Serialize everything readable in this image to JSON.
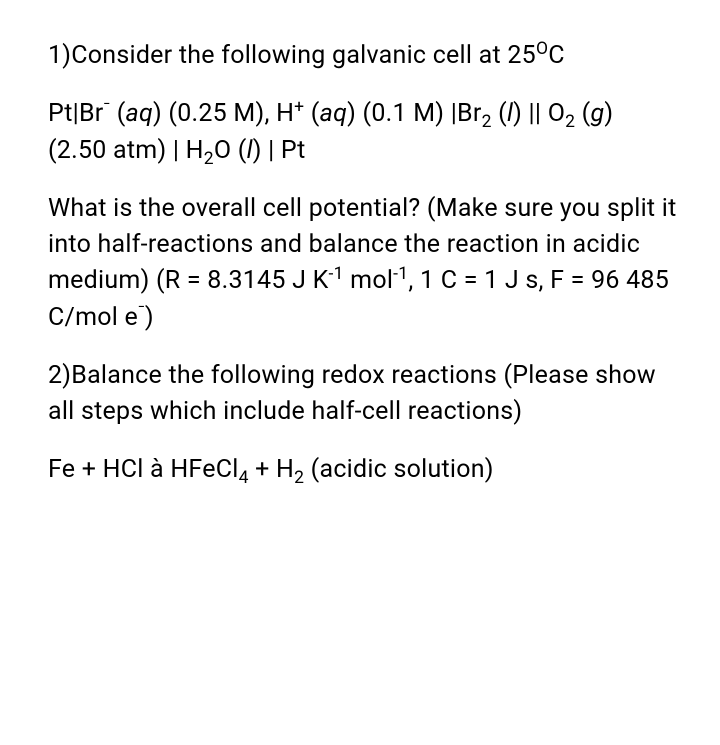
{
  "p1": {
    "pre": "1)Consider the following galvanic cell at 25",
    "degC": "C"
  },
  "p2": {
    "a": "Pt|Br",
    "aq1": " (",
    "aqital1": "aq",
    "aq1b": ") (0.25 M), H",
    "aq2": " (",
    "aqital2": "aq",
    "aq2b": ") (0.1 M) |Br",
    "aq3": " (",
    "lital1": "l",
    "aq3b": ") || O",
    "aq4": " (",
    "gital": "g",
    "aq4b": ") (2.50 atm) | H",
    "oO": "O (",
    "lital2": "l",
    "close": ") | Pt"
  },
  "p3": {
    "a": "What is the overall cell potential? (Make sure you split it into half-reactions and balance the reaction in acidic medium) (R = 8.3145 J K",
    "b": " mol",
    "c": ", 1 C = 1 J s, F = 96 485 C/mol e",
    "d": ")"
  },
  "p4": "2)Balance the following redox reactions (Please show all steps which include half-cell reactions)",
  "p5": {
    "a": "Fe + HCl à HFeCl",
    "b": " + H",
    "c": " (acidic solution)"
  },
  "sym": {
    "minus": "-",
    "plus": "+",
    "O": "O",
    "two": "2",
    "four": "4",
    "neg1": "-1",
    "bigminus": "⁻"
  }
}
